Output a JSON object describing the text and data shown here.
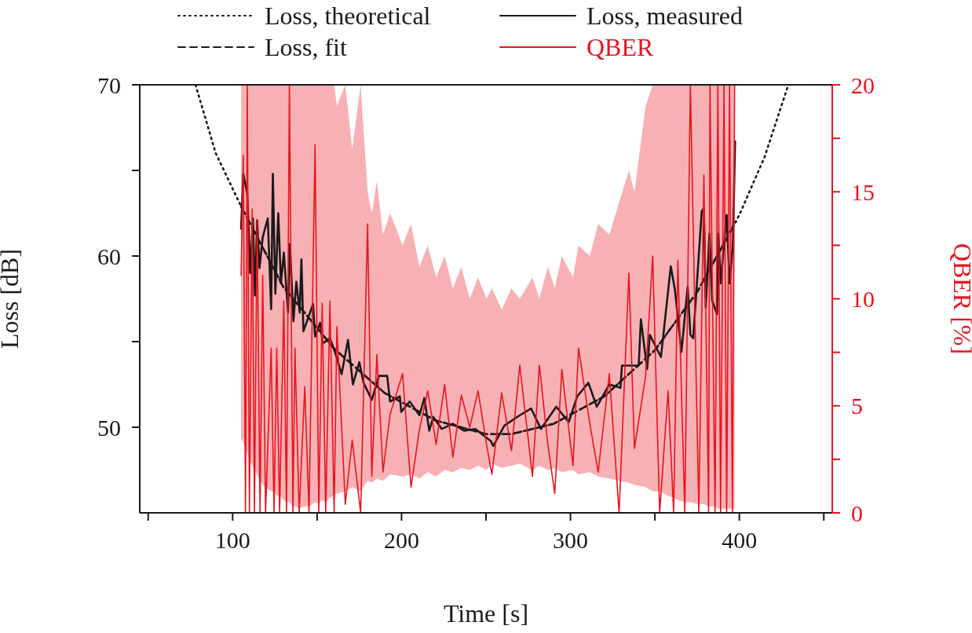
{
  "chart_data": {
    "type": "line",
    "xlabel": "Time [s]",
    "ylabel": "Loss [dB]",
    "y2label": "QBER [%]",
    "xlim": [
      45,
      455
    ],
    "xticks": [
      {
        "value": 50,
        "label": null
      },
      100,
      {
        "value": 150,
        "label": null
      },
      200,
      {
        "value": 250,
        "label": null
      },
      300,
      {
        "value": 350,
        "label": null
      },
      400,
      {
        "value": 450,
        "label": null
      }
    ],
    "ylim": [
      45,
      70
    ],
    "yticks": [
      50,
      {
        "value": 55,
        "label": null
      },
      60,
      {
        "value": 65,
        "label": null
      },
      70
    ],
    "y2lim": [
      0,
      20
    ],
    "y2ticks": [
      0,
      {
        "value": 2.5,
        "label": null
      },
      5,
      {
        "value": 7.5,
        "label": null
      },
      10,
      {
        "value": 12.5,
        "label": null
      },
      15,
      {
        "value": 17.5,
        "label": null
      },
      20
    ],
    "legend": "top",
    "grid": false,
    "series": [
      {
        "name": "Loss, theoretical",
        "color": "#1a1a1a",
        "line_style": "dotted",
        "x": [
          78,
          90,
          105,
          130,
          160,
          190,
          220,
          250,
          265,
          290,
          320,
          350,
          375,
          400,
          415,
          429
        ],
        "values": [
          70,
          66,
          62.9,
          58.2,
          54.6,
          52.0,
          50.4,
          49.6,
          49.6,
          50.2,
          51.8,
          54.5,
          57.9,
          62.4,
          65.8,
          70
        ]
      },
      {
        "name": "Loss, measured",
        "color": "#1a1a1a",
        "line_style": "solid",
        "x": [
          105,
          106.3,
          108.7,
          110.4,
          112,
          113.2,
          114.5,
          115.9,
          117.8,
          120.8,
          122.8,
          123.8,
          125.3,
          127,
          128.6,
          130.3,
          132.8,
          133.9,
          136,
          137.7,
          139.7,
          140.7,
          141.9,
          147.6,
          148.8,
          151.8,
          153.4,
          157.6,
          160.9,
          164.5,
          168.3,
          171.2,
          175,
          177.5,
          182.4,
          186.6,
          191.5,
          193.2,
          199,
          199.8,
          204.8,
          210.6,
          213.5,
          216.4,
          218.8,
          223.8,
          230.4,
          237,
          243.7,
          252.8,
          254.3,
          260.9,
          270,
          276.7,
          282.5,
          291.6,
          299,
          304,
          310.6,
          315.6,
          323,
          329.6,
          330.5,
          340.4,
          341.7,
          345.4,
          347,
          353.6,
          359.4,
          361.9,
          365.7,
          369.4,
          371,
          372.7,
          377.7,
          379,
          380.1,
          382.3,
          383.9,
          386.8,
          387.6,
          388.9,
          392.5,
          394.2,
          396.2,
          397.5
        ],
        "values": [
          61.6,
          64.8,
          63.6,
          59.0,
          62.2,
          57.7,
          62.1,
          59.3,
          61.1,
          62.2,
          56.9,
          64.8,
          57.8,
          62.5,
          58.4,
          60.2,
          56.7,
          60.7,
          56.2,
          58.5,
          56.7,
          59.8,
          55.6,
          57.2,
          55.3,
          56.1,
          54.9,
          55.2,
          54.3,
          53.1,
          55.1,
          52.5,
          53.8,
          52.6,
          51.6,
          53.0,
          53.0,
          51.5,
          51.8,
          50.9,
          51.5,
          50.7,
          51.7,
          49.8,
          50.6,
          49.9,
          50.2,
          49.8,
          49.9,
          49.2,
          48.9,
          50.1,
          50.7,
          51.1,
          49.9,
          51.2,
          50.3,
          51.8,
          52.6,
          51.2,
          52.5,
          52.3,
          53.6,
          53.6,
          56.3,
          53.4,
          55.4,
          54.1,
          59.4,
          58.0,
          54.4,
          58.2,
          55.4,
          55.2,
          62.6,
          62.8,
          57.0,
          61.3,
          57.4,
          56.6,
          61.3,
          58.4,
          62.4,
          58.4,
          60.7,
          66.7
        ]
      },
      {
        "name": "Loss, fit",
        "color": "#1a1a1a",
        "line_style": "dashed",
        "x": [
          105,
          130,
          160,
          190,
          220,
          250,
          265,
          290,
          320,
          350,
          375,
          398
        ],
        "values": [
          62.9,
          58.2,
          54.6,
          52.0,
          50.4,
          49.6,
          49.6,
          50.2,
          51.8,
          54.5,
          57.9,
          62.0
        ]
      },
      {
        "name": "QBER",
        "color": "#e8141e",
        "line_style": "solid",
        "axis": "y2",
        "x": [
          105,
          106.3,
          107.6,
          108.7,
          109.9,
          111.6,
          112.9,
          114.5,
          116.2,
          117.8,
          119.5,
          122.8,
          124.5,
          126.1,
          127.8,
          130.3,
          131.9,
          133.6,
          135.7,
          136.9,
          139.4,
          142.7,
          145.2,
          148.8,
          151,
          153,
          155.1,
          157.6,
          160.1,
          161.7,
          166.7,
          170.8,
          175.8,
          179.9,
          182.4,
          185.4,
          189,
          193.2,
          200.6,
          205.6,
          210.6,
          215.5,
          220.5,
          225.5,
          230.4,
          235.4,
          240.4,
          245.3,
          250.3,
          253.5,
          259.3,
          265.1,
          270,
          277.5,
          281.6,
          286.6,
          290.7,
          294.9,
          301.5,
          304.8,
          311.4,
          316.4,
          323,
          328.8,
          334.6,
          337.9,
          344.5,
          348.7,
          352.8,
          357.8,
          361.1,
          363.6,
          367.7,
          371,
          376,
          379,
          381.8,
          382.6,
          385.6,
          387.3,
          388.9,
          390.9,
          392.5,
          394.2,
          395.9,
          397.2
        ],
        "values": [
          11.1,
          16.7,
          0,
          20,
          0,
          14.2,
          0,
          13.7,
          0,
          11.1,
          0,
          7.7,
          0,
          7.7,
          0,
          9.9,
          0,
          20,
          0,
          7.7,
          0,
          5.9,
          0,
          17.2,
          0,
          9.8,
          0,
          9.9,
          0,
          8.7,
          0.4,
          3.4,
          0,
          13.5,
          1.7,
          7.4,
          1.9,
          4.6,
          6.5,
          1.2,
          3.9,
          5.7,
          3.2,
          6.0,
          2.6,
          5.5,
          4.0,
          5.7,
          3.2,
          1.8,
          5.6,
          2.9,
          6.9,
          1.7,
          6.9,
          3.2,
          0.9,
          6.7,
          2.2,
          7.7,
          4.2,
          1.9,
          6.5,
          0,
          11.2,
          3.0,
          6.4,
          12.0,
          0,
          5.7,
          0,
          11.8,
          0,
          20,
          0,
          15.8,
          0,
          20,
          0,
          20,
          0,
          20,
          0,
          20,
          0,
          20
        ],
        "upper": [
          20,
          20,
          20,
          20,
          20,
          20,
          20,
          20,
          20,
          20,
          20,
          20,
          20,
          20,
          20,
          20,
          20,
          20,
          20,
          20,
          20,
          20,
          20,
          20,
          20,
          20,
          20,
          20,
          20,
          19,
          20,
          17,
          20,
          15,
          14,
          15.5,
          13,
          14,
          12.5,
          13.5,
          11.5,
          12.5,
          11,
          12,
          10.5,
          11.5,
          10,
          11,
          10,
          10.5,
          9.5,
          10.5,
          10,
          11,
          10,
          11.5,
          10.5,
          12,
          11,
          12.5,
          12,
          13.5,
          13,
          14.5,
          16,
          15,
          19,
          20,
          20,
          20,
          20,
          20,
          20,
          20,
          20,
          20,
          20,
          20,
          20,
          20,
          20,
          20,
          20,
          20,
          20,
          20
        ],
        "lower": [
          3.5,
          3.3,
          3,
          2.8,
          2.5,
          2.2,
          2,
          1.8,
          1.5,
          1.3,
          1.2,
          1,
          1,
          0.8,
          0.8,
          0.6,
          0.5,
          0.5,
          0.3,
          0.3,
          0.2,
          0.3,
          0.3,
          0.5,
          0.4,
          0.6,
          0.5,
          0.7,
          0.8,
          0.9,
          1,
          1.2,
          1,
          1.5,
          1.4,
          1.6,
          1.5,
          1.8,
          1.7,
          1.8,
          1.6,
          1.9,
          1.7,
          2,
          1.9,
          2.1,
          2,
          2.2,
          2,
          2.3,
          2.1,
          2.2,
          2.3,
          2,
          2.2,
          2,
          2.1,
          1.9,
          2,
          1.8,
          1.9,
          1.7,
          1.6,
          1.5,
          1.4,
          1.3,
          1.2,
          1,
          1,
          0.8,
          0.7,
          0.6,
          0.5,
          0.5,
          0.4,
          0.4,
          0.3,
          0.3,
          0.3,
          0.2,
          0.2,
          0.2,
          0.2,
          0.2,
          0.2,
          0.2
        ]
      }
    ]
  }
}
